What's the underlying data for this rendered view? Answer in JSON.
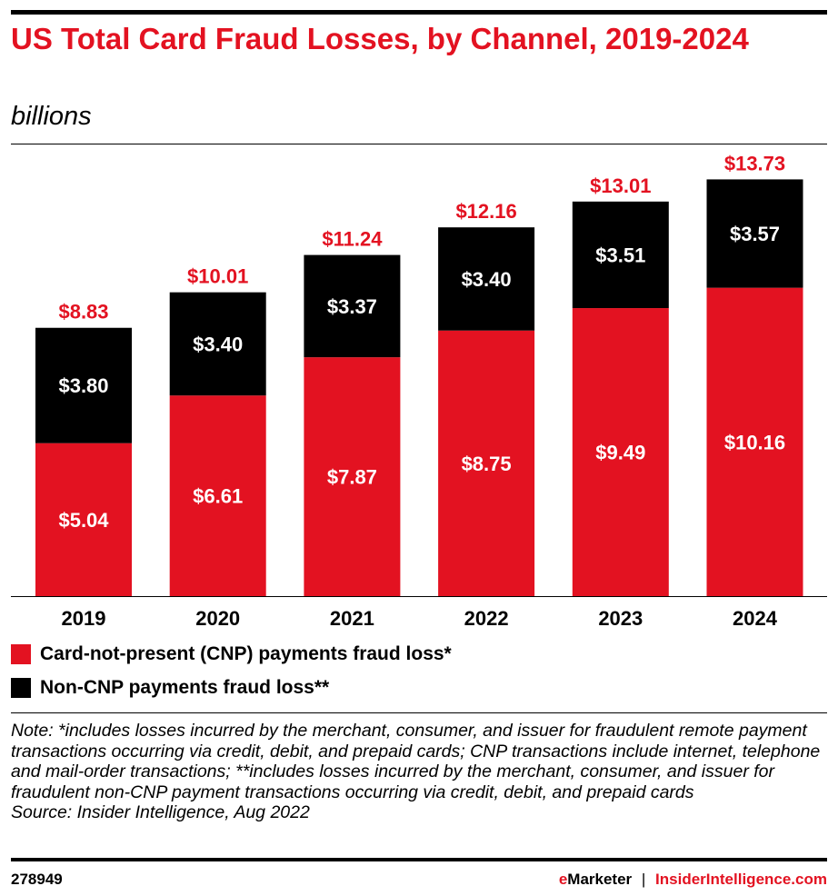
{
  "title": "US Total Card Fraud Losses, by Channel, 2019-2024",
  "subtitle": "billions",
  "chart_data": {
    "type": "bar",
    "stacked": true,
    "categories": [
      "2019",
      "2020",
      "2021",
      "2022",
      "2023",
      "2024"
    ],
    "series": [
      {
        "name": "Card-not-present (CNP) payments fraud loss*",
        "color": "#e31221",
        "values": [
          5.04,
          6.61,
          7.87,
          8.75,
          9.49,
          10.16
        ],
        "labels": [
          "$5.04",
          "$6.61",
          "$7.87",
          "$8.75",
          "$9.49",
          "$10.16"
        ]
      },
      {
        "name": "Non-CNP payments fraud loss**",
        "color": "#000000",
        "values": [
          3.8,
          3.4,
          3.37,
          3.4,
          3.51,
          3.57
        ],
        "labels": [
          "$3.80",
          "$3.40",
          "$3.37",
          "$3.40",
          "$3.51",
          "$3.57"
        ]
      }
    ],
    "totals": [
      8.83,
      10.01,
      11.24,
      12.16,
      13.01,
      13.73
    ],
    "total_labels": [
      "$8.83",
      "$10.01",
      "$11.24",
      "$12.16",
      "$13.01",
      "$13.73"
    ],
    "ylim": [
      0,
      14
    ],
    "grid": false,
    "legend_placement": "bottom-left"
  },
  "note": "Note: *includes losses incurred by the merchant, consumer, and issuer for fraudulent remote payment transactions occurring via credit, debit, and prepaid cards; CNP transactions include internet, telephone and mail-order transactions; **includes losses incurred by the merchant, consumer, and issuer for fraudulent non-CNP payment transactions occurring via credit, debit, and prepaid cards",
  "source": "Source: Insider Intelligence, Aug 2022",
  "footer": {
    "id": "278949",
    "brand_e": "e",
    "brand_rest": "Marketer",
    "separator": "|",
    "site": "InsiderIntelligence.com"
  }
}
